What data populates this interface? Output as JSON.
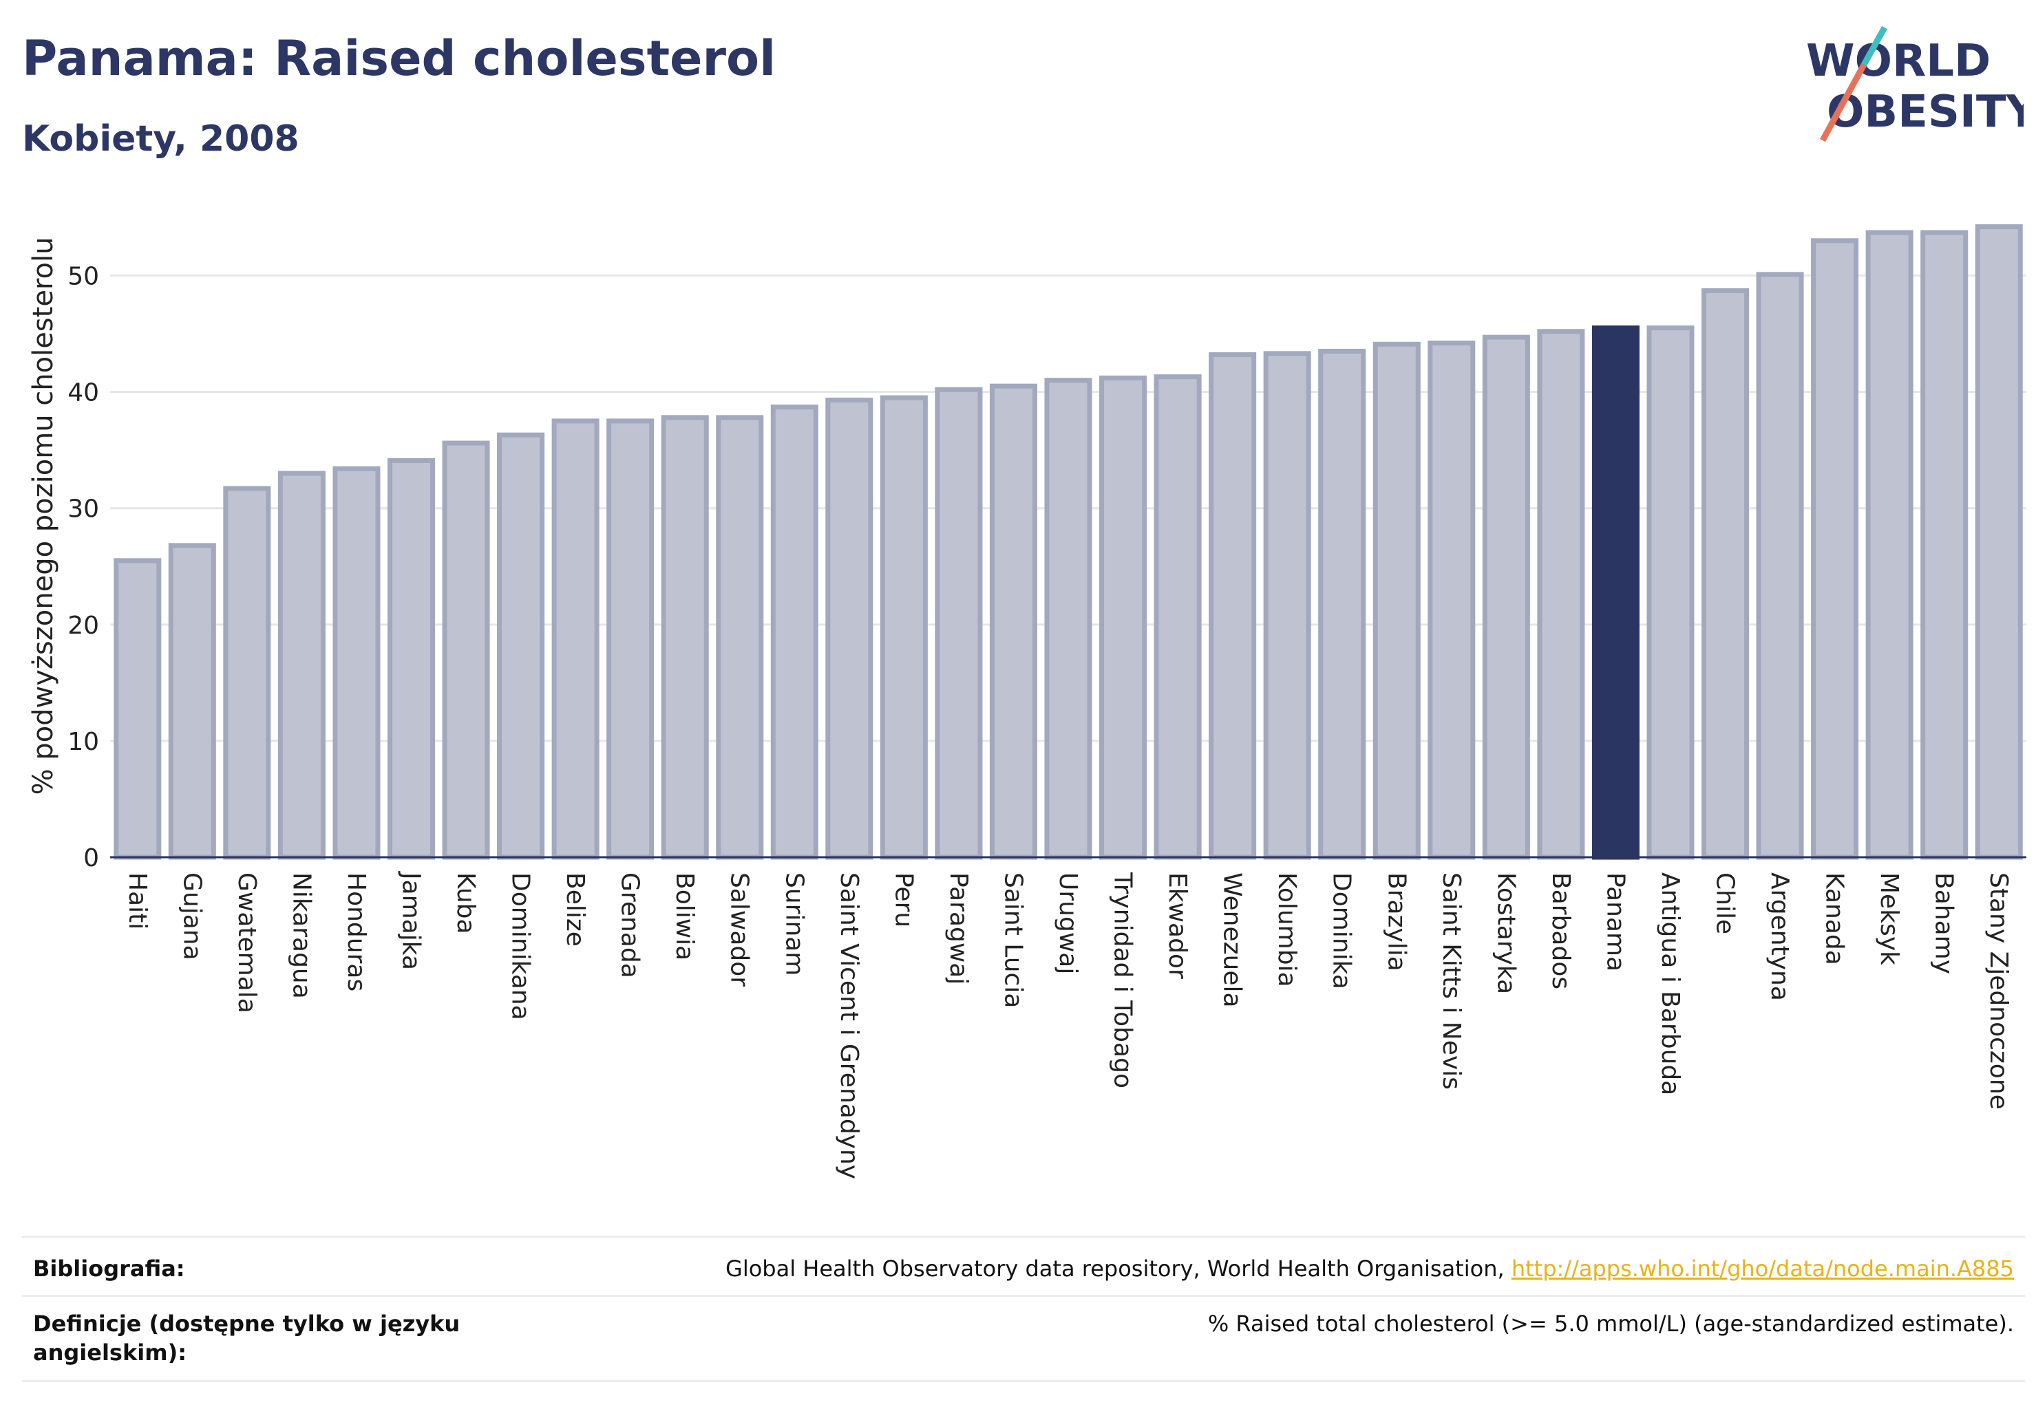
{
  "header": {
    "title": "Panama: Raised cholesterol",
    "subtitle": "Kobiety, 2008"
  },
  "logo": {
    "line1": "WORLD",
    "line2": "OBESITY"
  },
  "colors": {
    "bar": "#bfc2d0",
    "bar_border": "#a2a8bd",
    "highlight": "#2b3561",
    "grid": "#e6e6ea"
  },
  "chart_data": {
    "type": "bar",
    "title": "Panama: Raised cholesterol",
    "subtitle": "Kobiety, 2008",
    "xlabel": "",
    "ylabel": "% podwyższonego poziomu cholesterolu",
    "ylim": [
      0,
      55
    ],
    "yticks": [
      0,
      10,
      20,
      30,
      40,
      50
    ],
    "grid": true,
    "highlight": "Panama",
    "categories": [
      "Haiti",
      "Gujana",
      "Gwatemala",
      "Nikaragua",
      "Honduras",
      "Jamajka",
      "Kuba",
      "Dominikana",
      "Belize",
      "Grenada",
      "Boliwia",
      "Salwador",
      "Surinam",
      "Saint Vicent i Grenadyny",
      "Peru",
      "Paragwaj",
      "Saint Lucia",
      "Urugwaj",
      "Trynidad i Tobago",
      "Ekwador",
      "Wenezuela",
      "Kolumbia",
      "Dominika",
      "Brazylia",
      "Saint Kitts i Nevis",
      "Kostaryka",
      "Barbados",
      "Panama",
      "Antigua i Barbuda",
      "Chile",
      "Argentyna",
      "Kanada",
      "Meksyk",
      "Bahamy",
      "Stany Zjednoczone"
    ],
    "values": [
      25.5,
      26.8,
      31.7,
      33.0,
      33.4,
      34.1,
      35.6,
      36.3,
      37.5,
      37.5,
      37.8,
      37.8,
      38.7,
      39.3,
      39.5,
      40.2,
      40.5,
      41.0,
      41.2,
      41.3,
      43.2,
      43.3,
      43.5,
      44.1,
      44.2,
      44.7,
      45.2,
      45.5,
      45.5,
      48.7,
      50.1,
      53.0,
      53.7,
      53.7,
      54.2
    ]
  },
  "footer": {
    "bibliography_label": "Bibliografia:",
    "bibliography_text": "Global Health Observatory data repository, World Health Organisation, ",
    "bibliography_link": "http://apps.who.int/gho/data/node.main.A885",
    "definitions_label": "Definicje (dostępne tylko w języku angielskim):",
    "definitions_text": "% Raised total cholesterol (>= 5.0 mmol/L) (age-standardized estimate)."
  }
}
